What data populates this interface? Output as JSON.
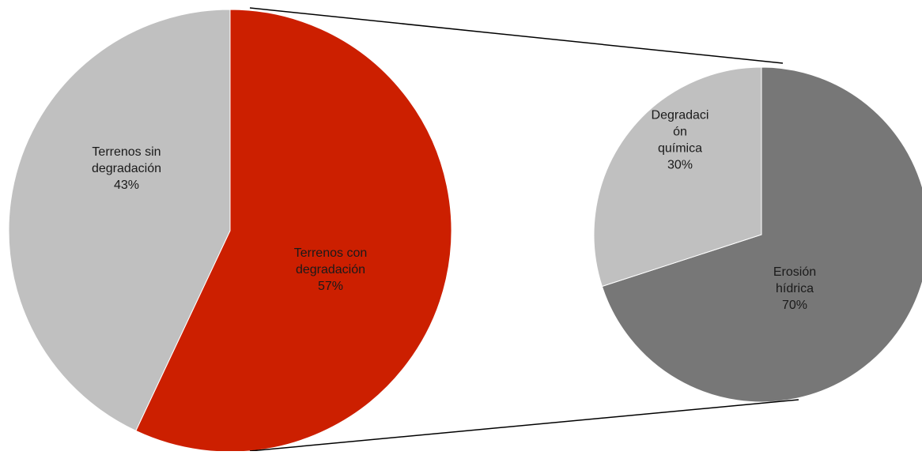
{
  "chart_data": {
    "type": "pie",
    "subtype": "pie-of-pie",
    "main": {
      "slices": [
        {
          "label_lines": [
            "Terrenos con",
            "degradación"
          ],
          "pct_label": "57%",
          "value": 57,
          "color": "#cc1f00"
        },
        {
          "label_lines": [
            "Terrenos sin",
            "degradación"
          ],
          "pct_label": "43%",
          "value": 43,
          "color": "#c0c0c0"
        }
      ]
    },
    "breakdown": {
      "slices": [
        {
          "label_lines": [
            "Erosión",
            "hídrica"
          ],
          "pct_label": "70%",
          "value": 70,
          "color": "#777777"
        },
        {
          "label_lines": [
            "Degradaci",
            "ón",
            "química"
          ],
          "pct_label": "30%",
          "value": 30,
          "color": "#c0c0c0"
        }
      ]
    }
  }
}
